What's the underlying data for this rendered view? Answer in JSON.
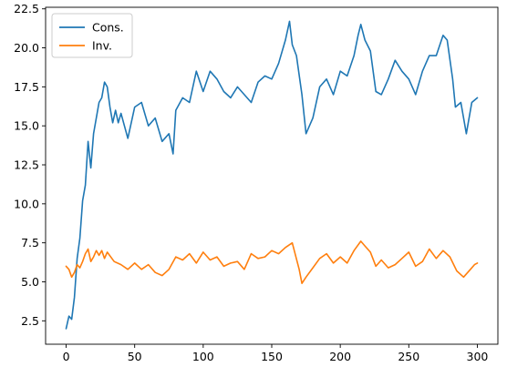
{
  "chart_data": {
    "type": "line",
    "title": "",
    "xlabel": "",
    "ylabel": "",
    "xlim": [
      -15,
      315
    ],
    "ylim": [
      1.0,
      22.6
    ],
    "x_ticks": [
      0,
      50,
      100,
      150,
      200,
      250,
      300
    ],
    "x_tick_labels": [
      "0",
      "50",
      "100",
      "150",
      "200",
      "250",
      "300"
    ],
    "y_ticks": [
      2.5,
      5.0,
      7.5,
      10.0,
      12.5,
      15.0,
      17.5,
      20.0,
      22.5
    ],
    "y_tick_labels": [
      "2.5",
      "5.0",
      "7.5",
      "10.0",
      "12.5",
      "15.0",
      "17.5",
      "20.0",
      "22.5"
    ],
    "grid": false,
    "legend": "top-left",
    "series": [
      {
        "name": "Cons.",
        "color": "#1f77b4",
        "x": [
          0,
          2,
          4,
          6,
          8,
          10,
          12,
          14,
          16,
          18,
          20,
          22,
          24,
          26,
          28,
          30,
          32,
          34,
          36,
          38,
          40,
          45,
          50,
          55,
          60,
          65,
          70,
          75,
          78,
          80,
          85,
          90,
          95,
          100,
          105,
          110,
          115,
          120,
          125,
          130,
          135,
          140,
          145,
          150,
          155,
          160,
          163,
          165,
          168,
          172,
          175,
          180,
          185,
          190,
          195,
          200,
          205,
          210,
          213,
          215,
          218,
          222,
          226,
          230,
          235,
          240,
          245,
          250,
          255,
          260,
          265,
          270,
          275,
          278,
          282,
          284,
          288,
          292,
          296,
          300
        ],
        "values": [
          2.0,
          2.8,
          2.6,
          4.0,
          6.5,
          7.8,
          10.2,
          11.2,
          14.0,
          12.3,
          14.5,
          15.5,
          16.5,
          16.8,
          17.8,
          17.5,
          16.2,
          15.2,
          16.0,
          15.2,
          15.8,
          14.2,
          16.2,
          16.5,
          15.0,
          15.5,
          14.0,
          14.5,
          13.2,
          16.0,
          16.8,
          16.5,
          18.5,
          17.2,
          18.5,
          18.0,
          17.2,
          16.8,
          17.5,
          17.0,
          16.5,
          17.8,
          18.2,
          18.0,
          19.0,
          20.5,
          21.7,
          20.2,
          19.5,
          17.0,
          14.5,
          15.5,
          17.5,
          18.0,
          17.0,
          18.5,
          18.2,
          19.5,
          20.8,
          21.5,
          20.5,
          19.8,
          17.2,
          17.0,
          18.0,
          19.2,
          18.5,
          18.0,
          17.0,
          18.5,
          19.5,
          19.5,
          20.8,
          20.5,
          18.0,
          16.2,
          16.5,
          14.5,
          16.5,
          16.8
        ]
      },
      {
        "name": "Inv.",
        "color": "#ff7f0e",
        "x": [
          0,
          2,
          4,
          6,
          8,
          10,
          12,
          14,
          16,
          18,
          20,
          22,
          24,
          26,
          28,
          30,
          35,
          40,
          45,
          50,
          55,
          60,
          65,
          70,
          75,
          80,
          85,
          90,
          95,
          100,
          105,
          110,
          115,
          120,
          125,
          130,
          135,
          140,
          145,
          150,
          155,
          160,
          165,
          170,
          172,
          175,
          180,
          185,
          190,
          195,
          200,
          205,
          210,
          215,
          218,
          222,
          226,
          230,
          235,
          240,
          245,
          250,
          255,
          260,
          265,
          270,
          275,
          280,
          285,
          290,
          295,
          298,
          300
        ],
        "values": [
          6.0,
          5.8,
          5.3,
          5.6,
          6.1,
          5.9,
          6.3,
          6.8,
          7.1,
          6.3,
          6.6,
          7.0,
          6.7,
          7.0,
          6.5,
          6.9,
          6.3,
          6.1,
          5.8,
          6.2,
          5.8,
          6.1,
          5.6,
          5.4,
          5.8,
          6.6,
          6.4,
          6.8,
          6.2,
          6.9,
          6.4,
          6.6,
          6.0,
          6.2,
          6.3,
          5.8,
          6.8,
          6.5,
          6.6,
          7.0,
          6.8,
          7.2,
          7.5,
          5.8,
          4.9,
          5.3,
          5.9,
          6.5,
          6.8,
          6.2,
          6.6,
          6.2,
          7.0,
          7.6,
          7.3,
          6.9,
          6.0,
          6.4,
          5.9,
          6.1,
          6.5,
          6.9,
          6.0,
          6.3,
          7.1,
          6.5,
          7.0,
          6.6,
          5.7,
          5.3,
          5.8,
          6.1,
          6.2
        ]
      }
    ]
  }
}
